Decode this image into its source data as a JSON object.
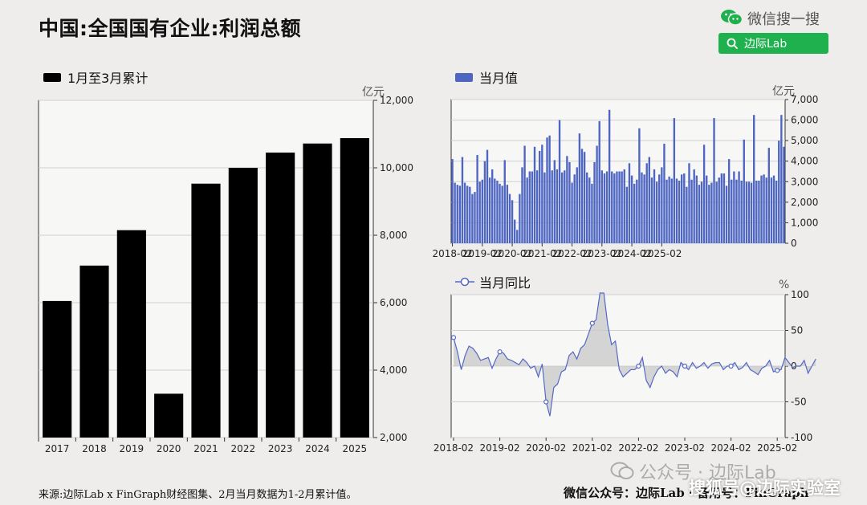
{
  "page": {
    "title": "中国:全国国有企业:利润总额",
    "wechat_search_label": "微信搜一搜",
    "search_button_text": "边际Lab",
    "source_note": "来源:边际Lab x FinGraph财经图集、2月当月数据为1-2月累计值。",
    "footer_account": "微信公众号：边际Lab · 备用号：FinGraph",
    "watermark_public": "公众号 · 边际Lab",
    "watermark_sohu": "搜狐号@边际实验室"
  },
  "chart_data": [
    {
      "type": "bar",
      "legend": "1月至3月累计",
      "unit": "亿元",
      "categories": [
        "2017",
        "2018",
        "2019",
        "2020",
        "2021",
        "2022",
        "2023",
        "2024",
        "2025"
      ],
      "values": [
        6050,
        7100,
        8150,
        3300,
        9530,
        10000,
        10450,
        10720,
        10880
      ],
      "ylim": [
        2000,
        12000
      ],
      "yticks": [
        2000,
        4000,
        6000,
        8000,
        10000,
        12000
      ],
      "ytick_labels": [
        "2,000",
        "4,000",
        "6,000",
        "8,000",
        "10,000",
        "12,000"
      ],
      "color": "#000000"
    },
    {
      "type": "bar",
      "legend": "当月值",
      "unit": "亿元",
      "x_start": "2018-02",
      "xticks": [
        "2018-02",
        "2019-02",
        "2020-02",
        "2021-02",
        "2022-02",
        "2023-02",
        "2024-02",
        "2025-02"
      ],
      "values": [
        4100,
        2950,
        2850,
        2800,
        4200,
        2950,
        2800,
        2750,
        2400,
        2500,
        4300,
        3000,
        3100,
        4000,
        4550,
        3200,
        3600,
        3150,
        3050,
        2900,
        2800,
        4050,
        2850,
        2400,
        2100,
        1150,
        650,
        2400,
        3700,
        4750,
        3200,
        3500,
        3500,
        4700,
        3550,
        4500,
        4800,
        3450,
        5150,
        5250,
        3550,
        4050,
        3600,
        6000,
        3450,
        3550,
        4250,
        3950,
        2950,
        3350,
        3700,
        5350,
        4600,
        4450,
        3450,
        3200,
        2900,
        3950,
        4750,
        5950,
        3550,
        3400,
        3500,
        6500,
        3500,
        3400,
        3500,
        3500,
        3500,
        3600,
        2750,
        3900,
        3300,
        2900,
        3100,
        5600,
        3450,
        3350,
        3900,
        4200,
        3200,
        3600,
        3000,
        3350,
        3700,
        4850,
        3100,
        3250,
        3150,
        6100,
        3150,
        3050,
        3350,
        3400,
        2750,
        3900,
        3100,
        3600,
        3300,
        2850,
        3000,
        4800,
        3300,
        2850,
        2950,
        6100,
        3000,
        3200,
        3400,
        3400,
        2800,
        4100,
        3100,
        3500,
        3100,
        3500,
        3050,
        5050,
        3000,
        3000,
        2950,
        6250,
        3050,
        3050,
        3300,
        3350,
        3200,
        4650,
        3200,
        3300,
        3050,
        5000,
        6250,
        4700
      ],
      "ylim": [
        0,
        7000
      ],
      "yticks": [
        0,
        1000,
        2000,
        3000,
        4000,
        5000,
        6000,
        7000
      ],
      "ytick_labels": [
        "0",
        "1,000",
        "2,000",
        "3,000",
        "4,000",
        "5,000",
        "6,000",
        "7,000"
      ],
      "color": "#4e66c2"
    },
    {
      "type": "area",
      "legend": "当月同比",
      "unit": "%",
      "x_start": "2018-02",
      "xticks": [
        "2018-02",
        "2019-02",
        "2020-02",
        "2021-02",
        "2022-02",
        "2023-02",
        "2024-02",
        "2025-02"
      ],
      "values": [
        40,
        20,
        -5,
        15,
        28,
        25,
        18,
        8,
        10,
        12,
        -3,
        10,
        20,
        18,
        10,
        8,
        5,
        2,
        10,
        5,
        -3,
        0,
        -15,
        3,
        -50,
        -70,
        -30,
        -25,
        -8,
        -5,
        15,
        20,
        10,
        25,
        30,
        45,
        60,
        65,
        110,
        110,
        58,
        30,
        35,
        -5,
        -15,
        -10,
        -5,
        -5,
        0,
        12,
        -20,
        -30,
        -15,
        -5,
        0,
        -10,
        -5,
        -8,
        -15,
        5,
        0,
        -5,
        5,
        -3,
        0,
        5,
        -3,
        3,
        5,
        5,
        -5,
        0,
        0,
        5,
        -5,
        -2,
        5,
        -5,
        -8,
        -12,
        -3,
        0,
        8,
        -8,
        -6,
        -5,
        12,
        5,
        -2,
        0,
        0,
        8,
        -10,
        0,
        10
      ],
      "ylim": [
        -100,
        100
      ],
      "yticks": [
        -100,
        -50,
        0,
        50,
        100
      ],
      "ytick_labels": [
        "-100",
        "-50",
        "0",
        "50",
        "100"
      ],
      "line_color": "#5468c6",
      "fill_color": "#c8c8c8"
    }
  ]
}
